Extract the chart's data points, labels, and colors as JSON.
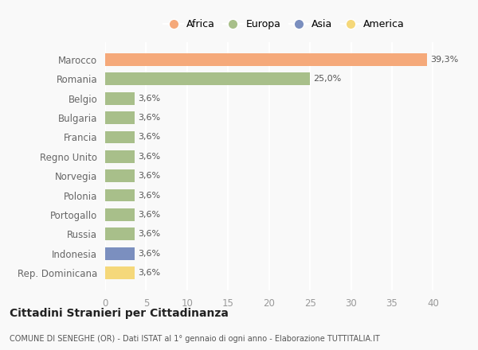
{
  "categories": [
    "Marocco",
    "Romania",
    "Belgio",
    "Bulgaria",
    "Francia",
    "Regno Unito",
    "Norvegia",
    "Polonia",
    "Portogallo",
    "Russia",
    "Indonesia",
    "Rep. Dominicana"
  ],
  "values": [
    39.3,
    25.0,
    3.6,
    3.6,
    3.6,
    3.6,
    3.6,
    3.6,
    3.6,
    3.6,
    3.6,
    3.6
  ],
  "labels": [
    "39,3%",
    "25,0%",
    "3,6%",
    "3,6%",
    "3,6%",
    "3,6%",
    "3,6%",
    "3,6%",
    "3,6%",
    "3,6%",
    "3,6%",
    "3,6%"
  ],
  "colors": [
    "#F5A97A",
    "#A8BF8A",
    "#A8BF8A",
    "#A8BF8A",
    "#A8BF8A",
    "#A8BF8A",
    "#A8BF8A",
    "#A8BF8A",
    "#A8BF8A",
    "#A8BF8A",
    "#7B8FBF",
    "#F5D87A"
  ],
  "legend_labels": [
    "Africa",
    "Europa",
    "Asia",
    "America"
  ],
  "legend_colors": [
    "#F5A97A",
    "#A8BF8A",
    "#7B8FBF",
    "#F5D87A"
  ],
  "title": "Cittadini Stranieri per Cittadinanza",
  "subtitle": "COMUNE DI SENEGHE (OR) - Dati ISTAT al 1° gennaio di ogni anno - Elaborazione TUTTITALIA.IT",
  "xlim": [
    0,
    42
  ],
  "xticks": [
    0,
    5,
    10,
    15,
    20,
    25,
    30,
    35,
    40
  ],
  "background_color": "#F9F9F9",
  "grid_color": "#FFFFFF",
  "bar_height": 0.65
}
